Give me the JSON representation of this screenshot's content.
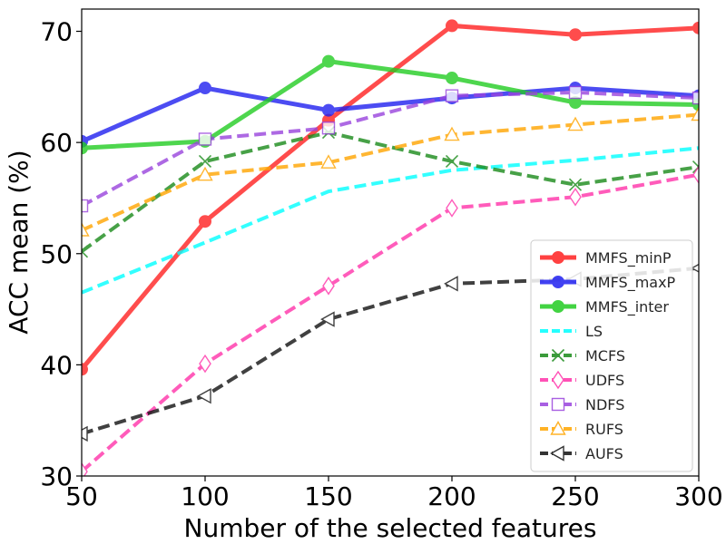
{
  "chart_data": {
    "type": "line",
    "title": "",
    "xlabel": "Number of the selected features",
    "ylabel": "ACC mean (%)",
    "x": [
      50,
      100,
      150,
      200,
      250,
      300
    ],
    "xlim": [
      50,
      300
    ],
    "ylim": [
      30,
      72
    ],
    "xticks": [
      "50",
      "100",
      "150",
      "200",
      "250",
      "300"
    ],
    "yticks": [
      "30",
      "40",
      "50",
      "60",
      "70"
    ],
    "legend_position": "lower-right",
    "series": [
      {
        "name": "MMFS_minP",
        "color": "#ff2020",
        "style": "solid",
        "marker": "circle",
        "width": 5,
        "values": [
          39.6,
          52.9,
          62.0,
          70.5,
          69.7,
          70.3
        ]
      },
      {
        "name": "MMFS_maxP",
        "color": "#2020f0",
        "style": "solid",
        "marker": "circle",
        "width": 5,
        "values": [
          60.1,
          64.9,
          62.9,
          64.0,
          64.9,
          64.2
        ]
      },
      {
        "name": "MMFS_inter",
        "color": "#22cc22",
        "style": "solid",
        "marker": "circle",
        "width": 5,
        "values": [
          59.5,
          60.1,
          67.3,
          65.8,
          63.6,
          63.4
        ]
      },
      {
        "name": "LS",
        "color": "#00ffff",
        "style": "dashed",
        "marker": "none",
        "width": 4,
        "values": [
          46.5,
          51.0,
          55.6,
          57.5,
          58.4,
          59.5
        ]
      },
      {
        "name": "MCFS",
        "color": "#1a8a1a",
        "style": "dashed",
        "marker": "x",
        "width": 4,
        "values": [
          50.2,
          58.3,
          60.9,
          58.3,
          56.2,
          57.8
        ]
      },
      {
        "name": "UDFS",
        "color": "#ff33aa",
        "style": "dashed",
        "marker": "diamond",
        "width": 4,
        "values": [
          30.4,
          40.1,
          47.1,
          54.1,
          55.1,
          57.1
        ]
      },
      {
        "name": "NDFS",
        "color": "#9944dd",
        "style": "dashed",
        "marker": "square",
        "width": 4,
        "values": [
          54.3,
          60.3,
          61.3,
          64.2,
          64.5,
          64.0
        ]
      },
      {
        "name": "RUFS",
        "color": "#ffa500",
        "style": "dashed",
        "marker": "triangle-up",
        "width": 4,
        "values": [
          52.1,
          57.1,
          58.2,
          60.7,
          61.6,
          62.5
        ]
      },
      {
        "name": "AUFS",
        "color": "#111111",
        "style": "dashed",
        "marker": "triangle-left",
        "width": 4,
        "values": [
          33.8,
          37.2,
          44.1,
          47.3,
          47.7,
          48.7
        ]
      }
    ]
  }
}
